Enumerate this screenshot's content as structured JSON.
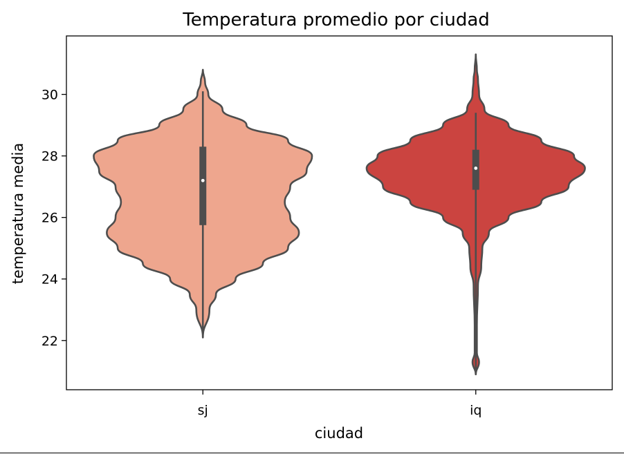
{
  "chart_data": {
    "type": "violin",
    "title": "Temperatura promedio por ciudad",
    "xlabel": "ciudad",
    "ylabel": "temperatura media",
    "ylim": [
      20.4,
      31.9
    ],
    "yticks": [
      22,
      24,
      26,
      28,
      30
    ],
    "grid": false,
    "legend": "none",
    "categories": [
      "sj",
      "iq"
    ],
    "series": [
      {
        "category": "sj",
        "color": "#eea68e",
        "min": 22.1,
        "max": 30.8,
        "q1": 25.75,
        "median": 27.2,
        "q3": 28.3,
        "whisker_low": 22.1,
        "whisker_high": 30.1,
        "density": [
          [
            22.1,
            0.0
          ],
          [
            23.0,
            0.06
          ],
          [
            23.5,
            0.12
          ],
          [
            24.0,
            0.3
          ],
          [
            24.5,
            0.55
          ],
          [
            25.0,
            0.78
          ],
          [
            25.5,
            0.88
          ],
          [
            26.0,
            0.8
          ],
          [
            26.5,
            0.75
          ],
          [
            27.0,
            0.8
          ],
          [
            27.5,
            0.95
          ],
          [
            28.0,
            1.0
          ],
          [
            28.5,
            0.78
          ],
          [
            29.0,
            0.4
          ],
          [
            29.5,
            0.18
          ],
          [
            30.0,
            0.05
          ],
          [
            30.4,
            0.02
          ],
          [
            30.8,
            0.0
          ]
        ]
      },
      {
        "category": "iq",
        "color": "#cb4440",
        "min": 20.9,
        "max": 31.3,
        "q1": 26.9,
        "median": 27.6,
        "q3": 28.2,
        "whisker_low": 20.9,
        "whisker_high": 29.4,
        "density": [
          [
            20.9,
            0.0
          ],
          [
            21.3,
            0.03
          ],
          [
            21.6,
            0.01
          ],
          [
            22.5,
            0.01
          ],
          [
            23.8,
            0.02
          ],
          [
            24.4,
            0.05
          ],
          [
            25.0,
            0.06
          ],
          [
            25.5,
            0.12
          ],
          [
            26.0,
            0.3
          ],
          [
            26.5,
            0.6
          ],
          [
            27.0,
            0.85
          ],
          [
            27.6,
            1.0
          ],
          [
            28.0,
            0.9
          ],
          [
            28.5,
            0.6
          ],
          [
            29.0,
            0.3
          ],
          [
            29.5,
            0.08
          ],
          [
            30.0,
            0.03
          ],
          [
            30.5,
            0.02
          ],
          [
            30.8,
            0.01
          ],
          [
            31.3,
            0.0
          ]
        ]
      }
    ]
  }
}
